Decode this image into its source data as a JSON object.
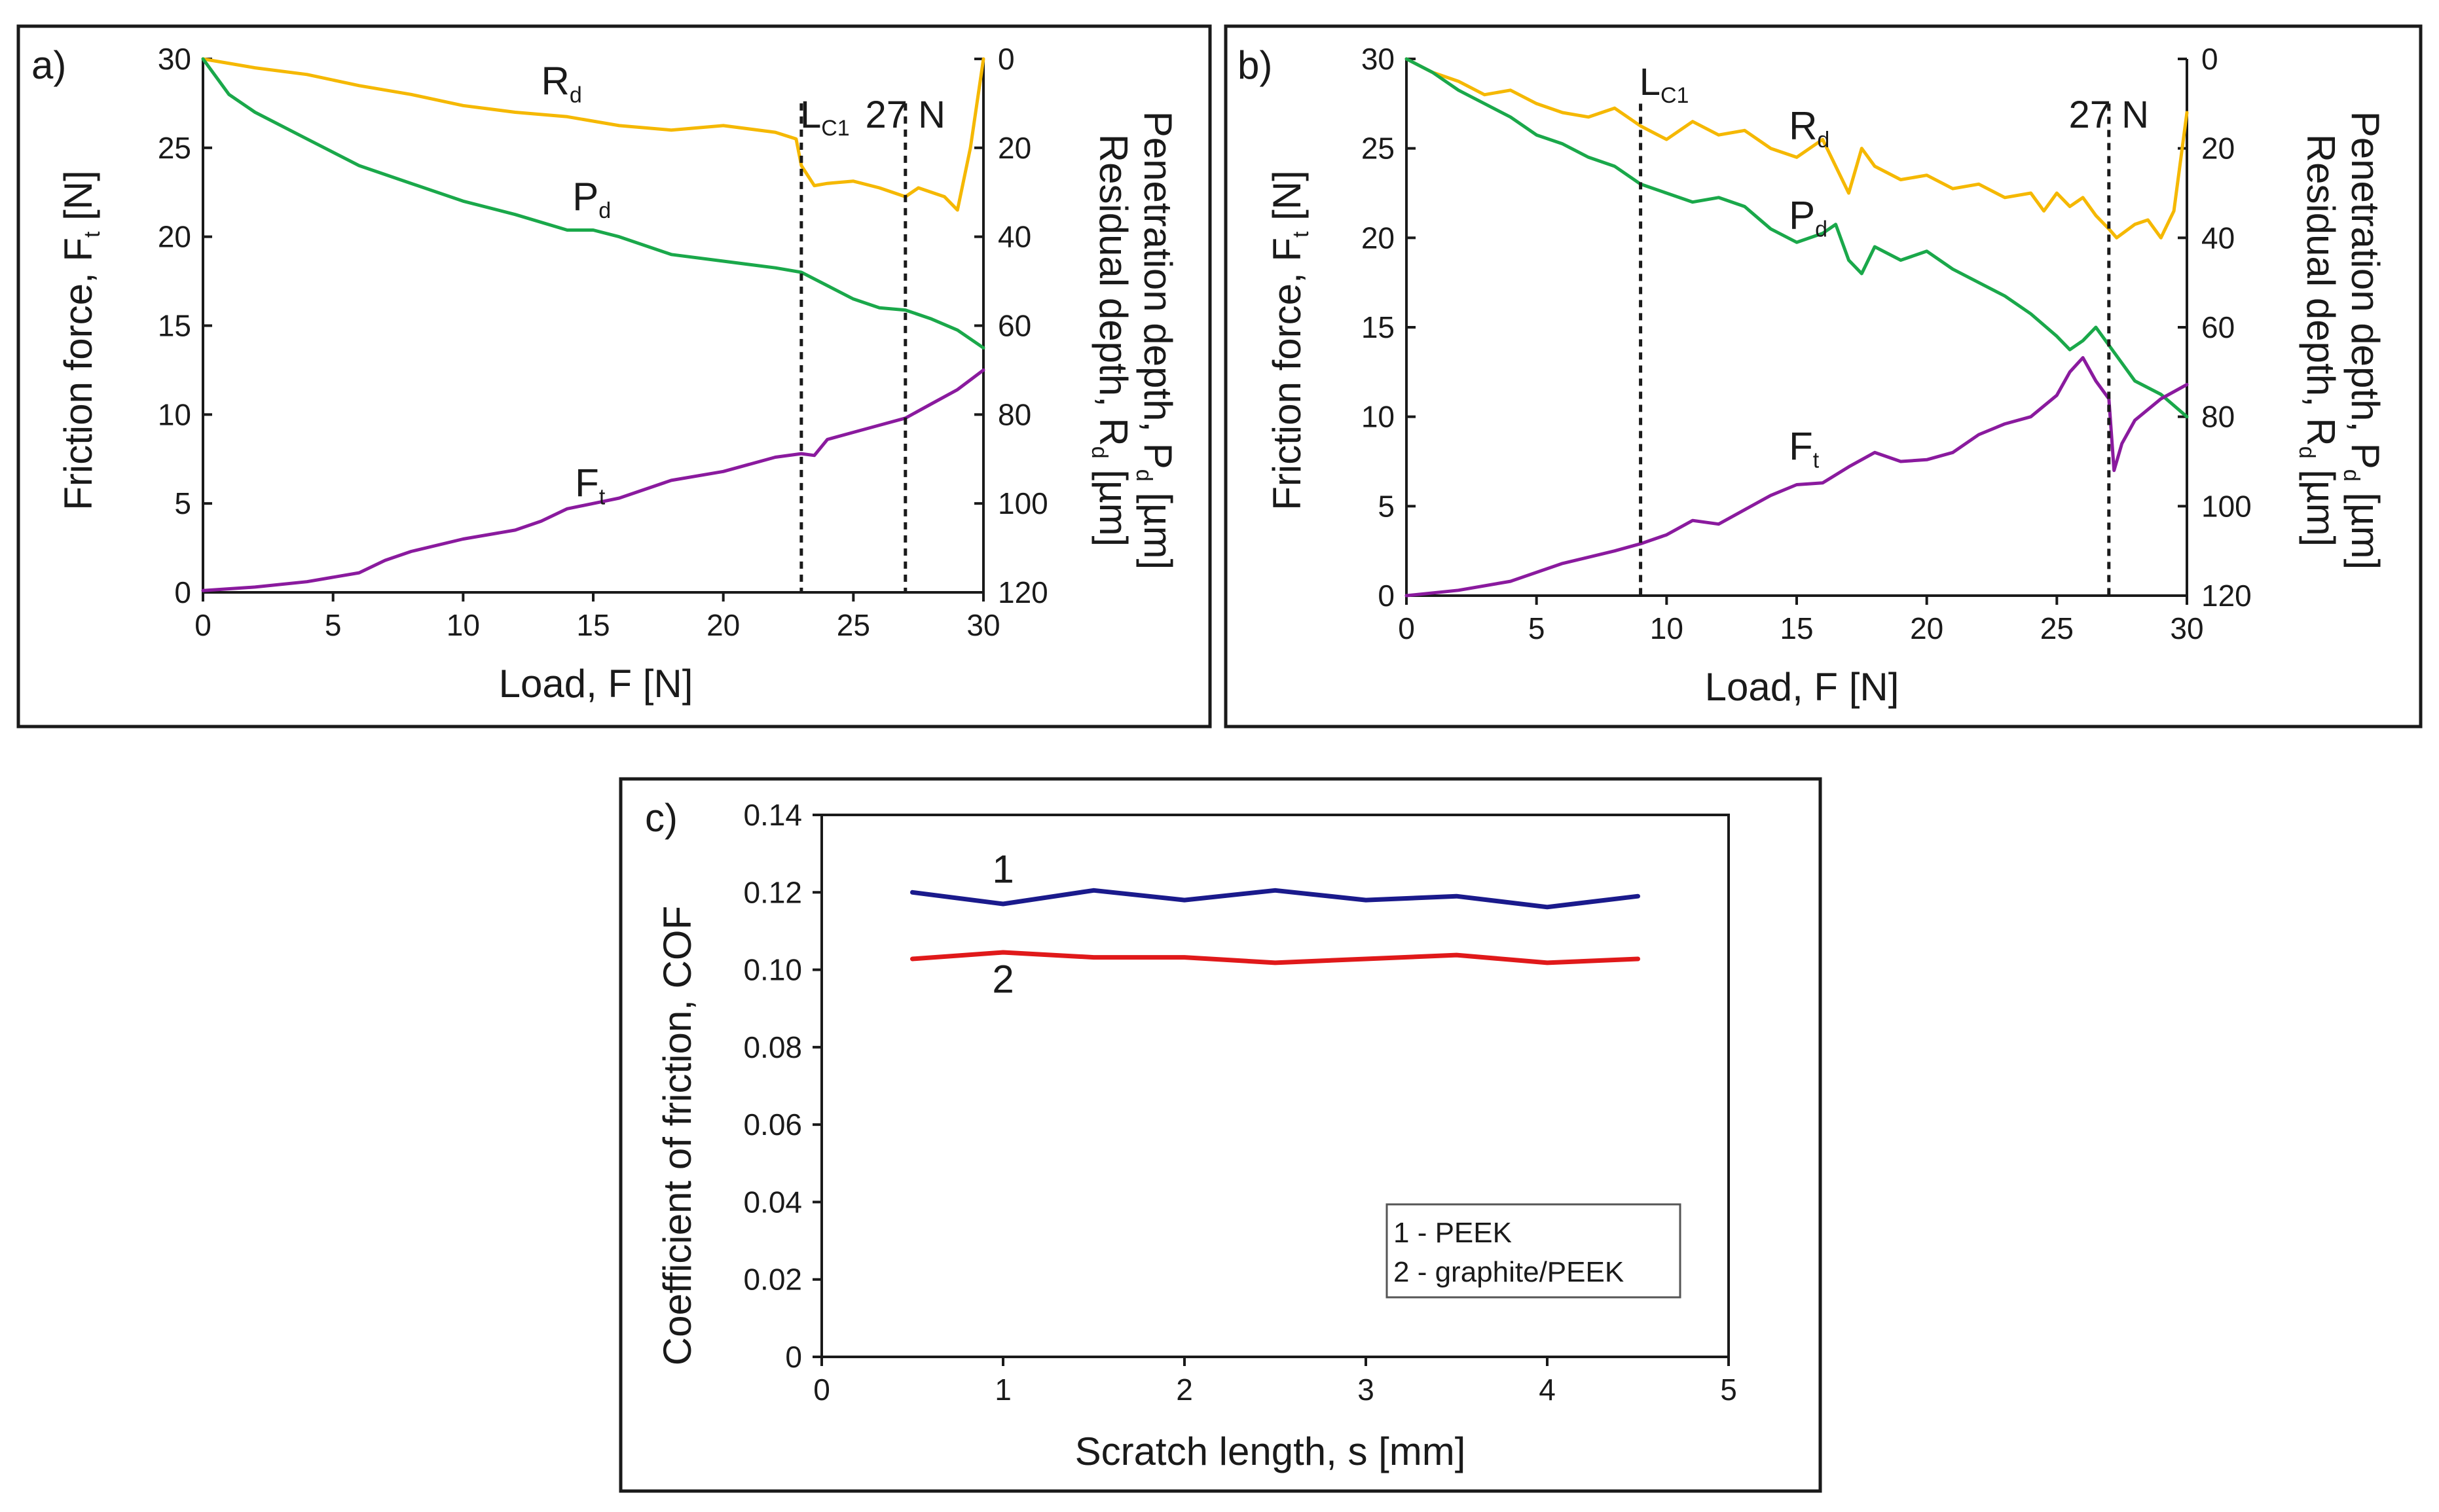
{
  "chart_data": [
    {
      "panel": "a)",
      "type": "line",
      "xlabel": "Load, F [N]",
      "ylabel_left": "Friction force, F_t [N]",
      "ylabel_right": "Penetration depth, P_d [µm] / Residual depth, R_d [µm]",
      "xlim": [
        0,
        30
      ],
      "ylim_left": [
        0,
        30
      ],
      "ylim_right": [
        0,
        120
      ],
      "x_ticks": [
        "0",
        "5",
        "10",
        "15",
        "20",
        "25",
        "30"
      ],
      "y_ticks_left": [
        "0",
        "5",
        "10",
        "15",
        "20",
        "25",
        "30"
      ],
      "y_ticks_right": [
        "0",
        "20",
        "40",
        "60",
        "80",
        "100",
        "120"
      ],
      "markers": [
        {
          "x": 23,
          "label": "L",
          "sub": "C1"
        },
        {
          "x": 27,
          "label": "27 N",
          "sub": ""
        }
      ],
      "series": [
        {
          "name": "R_d",
          "axis": "right",
          "color": "#f5b800",
          "x": [
            0,
            2,
            4,
            6,
            8,
            10,
            12,
            14,
            16,
            18,
            20,
            22,
            22.8,
            23,
            23.5,
            24,
            25,
            26,
            27,
            27.5,
            28,
            28.5,
            29,
            29.5,
            30
          ],
          "y": [
            0,
            2,
            3.5,
            6,
            8,
            10.5,
            12,
            13,
            15,
            16,
            15,
            16.5,
            18,
            24,
            28.5,
            28,
            27.5,
            29,
            31,
            29,
            30,
            31,
            34,
            20,
            0
          ]
        },
        {
          "name": "P_d",
          "axis": "right",
          "color": "#1aa84a",
          "x": [
            0,
            1,
            2,
            4,
            6,
            8,
            10,
            12,
            14,
            15,
            16,
            18,
            20,
            22,
            23,
            24,
            25,
            26,
            27,
            28,
            29,
            30
          ],
          "y": [
            0,
            8,
            12,
            18,
            24,
            28,
            32,
            35,
            38.5,
            38.5,
            40,
            44,
            45.5,
            47,
            48,
            51,
            54,
            56,
            56.5,
            58.5,
            61,
            65
          ]
        },
        {
          "name": "F_t",
          "axis": "left",
          "color": "#8a1a9e",
          "x": [
            0,
            2,
            4,
            6,
            7,
            8,
            10,
            12,
            13,
            14,
            15,
            16,
            18,
            20,
            22,
            23,
            23.5,
            24,
            25,
            26,
            27,
            28,
            29,
            30
          ],
          "y": [
            0.1,
            0.3,
            0.6,
            1.1,
            1.8,
            2.3,
            3.0,
            3.5,
            4.0,
            4.7,
            5.0,
            5.3,
            6.3,
            6.8,
            7.6,
            7.8,
            7.7,
            8.6,
            9.0,
            9.4,
            9.8,
            10.6,
            11.4,
            12.5
          ]
        }
      ],
      "curve_labels": [
        {
          "label": "R",
          "sub": "d",
          "series": "R_d"
        },
        {
          "label": "P",
          "sub": "d",
          "series": "P_d"
        },
        {
          "label": "F",
          "sub": "t",
          "series": "F_t"
        }
      ]
    },
    {
      "panel": "b)",
      "type": "line",
      "xlabel": "Load, F [N]",
      "ylabel_left": "Friction force, F_t [N]",
      "ylabel_right": "Penetration depth, P_d [µm] / Residual depth, R_d [µm]",
      "xlim": [
        0,
        30
      ],
      "ylim_left": [
        0,
        30
      ],
      "ylim_right": [
        0,
        120
      ],
      "x_ticks": [
        "0",
        "5",
        "10",
        "15",
        "20",
        "25",
        "30"
      ],
      "y_ticks_left": [
        "0",
        "5",
        "10",
        "15",
        "20",
        "25",
        "30"
      ],
      "y_ticks_right": [
        "0",
        "20",
        "40",
        "60",
        "80",
        "100",
        "120"
      ],
      "markers": [
        {
          "x": 9,
          "label": "L",
          "sub": "C1"
        },
        {
          "x": 27,
          "label": "27 N",
          "sub": ""
        }
      ],
      "series": [
        {
          "name": "R_d",
          "axis": "right",
          "color": "#f5b800",
          "x": [
            0,
            1,
            2,
            3,
            4,
            5,
            6,
            7,
            8,
            9,
            10,
            11,
            12,
            13,
            14,
            15,
            16,
            16.5,
            17,
            17.5,
            18,
            19,
            20,
            21,
            22,
            23,
            24,
            24.5,
            25,
            25.5,
            26,
            26.5,
            27,
            27.3,
            28,
            28.5,
            29,
            29.5,
            30
          ],
          "y": [
            0,
            3,
            5,
            8,
            7,
            10,
            12,
            13,
            11,
            15,
            18,
            14,
            17,
            16,
            20,
            22,
            18,
            24,
            30,
            20,
            24,
            27,
            26,
            29,
            28,
            31,
            30,
            34,
            30,
            33,
            31,
            35,
            38,
            40,
            37,
            36,
            40,
            34,
            12
          ]
        },
        {
          "name": "P_d",
          "axis": "right",
          "color": "#1aa84a",
          "x": [
            0,
            1,
            2,
            3,
            4,
            5,
            6,
            7,
            8,
            9,
            10,
            11,
            12,
            13,
            14,
            15,
            16,
            16.5,
            17,
            17.5,
            18,
            19,
            20,
            21,
            22,
            23,
            24,
            25,
            25.5,
            26,
            26.5,
            27,
            27.5,
            28,
            29,
            30
          ],
          "y": [
            0,
            3,
            7,
            10,
            13,
            17,
            19,
            22,
            24,
            28,
            30,
            32,
            31,
            33,
            38,
            41,
            39,
            37,
            45,
            48,
            42,
            45,
            43,
            47,
            50,
            53,
            57,
            62,
            65,
            63,
            60,
            64,
            68,
            72,
            75,
            80
          ]
        },
        {
          "name": "F_t",
          "axis": "left",
          "color": "#8a1a9e",
          "x": [
            0,
            2,
            4,
            6,
            8,
            9,
            10,
            11,
            12,
            13,
            14,
            15,
            16,
            17,
            18,
            19,
            20,
            21,
            22,
            23,
            24,
            25,
            25.5,
            26,
            26.5,
            27,
            27.2,
            27.5,
            28,
            29,
            30
          ],
          "y": [
            0,
            0.3,
            0.8,
            1.8,
            2.5,
            2.9,
            3.4,
            4.2,
            4.0,
            4.8,
            5.6,
            6.2,
            6.3,
            7.2,
            8.0,
            7.5,
            7.6,
            8.0,
            9.0,
            9.6,
            10.0,
            11.2,
            12.5,
            13.3,
            12.0,
            11.0,
            7.0,
            8.5,
            9.8,
            11.0,
            11.8
          ]
        }
      ],
      "curve_labels": [
        {
          "label": "R",
          "sub": "d",
          "series": "R_d"
        },
        {
          "label": "P",
          "sub": "d",
          "series": "P_d"
        },
        {
          "label": "F",
          "sub": "t",
          "series": "F_t"
        }
      ]
    },
    {
      "panel": "c)",
      "type": "line",
      "xlabel": "Scratch length, s [mm]",
      "ylabel": "Coefficient of friction, COF",
      "xlim": [
        0,
        5
      ],
      "ylim": [
        0,
        0.14
      ],
      "x_ticks": [
        "0",
        "1",
        "2",
        "3",
        "4",
        "5"
      ],
      "y_ticks": [
        "0",
        "0.02",
        "0.04",
        "0.06",
        "0.08",
        "0.10",
        "0.12",
        "0.14"
      ],
      "series": [
        {
          "name": "1 - PEEK",
          "marker_label": "1",
          "color": "#1a1a8c",
          "x": [
            0.5,
            1,
            1.5,
            2,
            2.5,
            3,
            3.5,
            4,
            4.5
          ],
          "y": [
            0.12,
            0.117,
            0.1205,
            0.118,
            0.1205,
            0.118,
            0.119,
            0.1162,
            0.119
          ]
        },
        {
          "name": "2 - graphite/PEEK",
          "marker_label": "2",
          "color": "#e0191a",
          "x": [
            0.5,
            1,
            1.5,
            2,
            2.5,
            3,
            3.5,
            4,
            4.5
          ],
          "y": [
            0.1028,
            0.1045,
            0.1032,
            0.1032,
            0.1018,
            0.1028,
            0.1038,
            0.1018,
            0.1028
          ]
        }
      ],
      "legend": [
        "1 - PEEK",
        "2 - graphite/PEEK"
      ],
      "legend_position": "bottom-right"
    }
  ],
  "labels": {
    "a_panel": "a)",
    "b_panel": "b)",
    "c_panel": "c)",
    "load_axis": "Load, F [N]",
    "friction_axis": "Friction force, F",
    "friction_sub": "t",
    "friction_unit": " [N]",
    "penetration_axis": "Penetration depth, P",
    "penetration_sub": "d",
    "penetration_unit": " [µm]",
    "residual_axis": "Residual depth, R",
    "residual_sub": "d",
    "residual_unit": " [µm]",
    "scratch_axis": "Scratch length, s [mm]",
    "cof_axis": "Coefficient of friction, COF",
    "legend_1": "1 - PEEK",
    "legend_2": "2 - graphite/PEEK",
    "series_1_label": "1",
    "series_2_label": "2"
  }
}
